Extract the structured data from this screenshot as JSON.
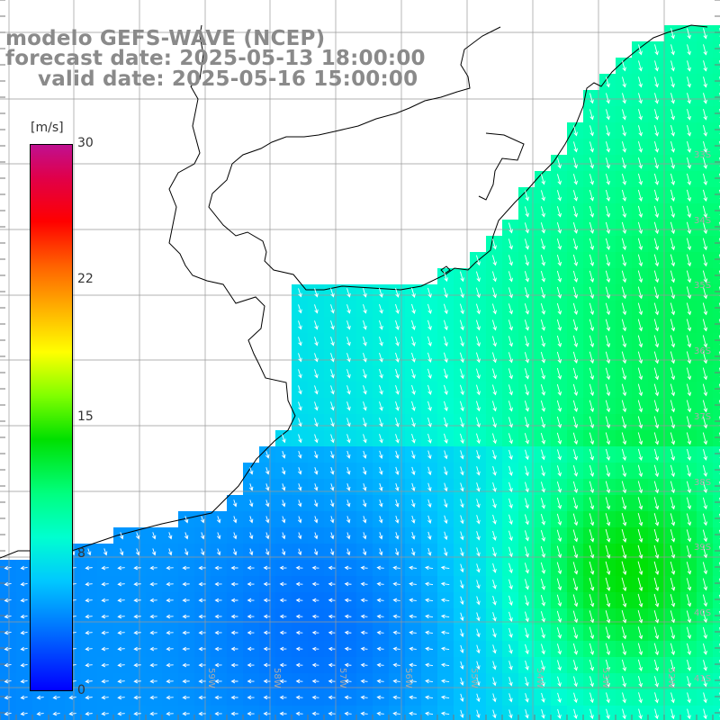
{
  "header": {
    "model_title": "modelo GEFS-WAVE (NCEP)",
    "forecast_date": "forecast date: 2025-05-13 18:00:00",
    "valid_date": "valid date: 2025-05-16 15:00:00"
  },
  "colorbar": {
    "unit": "[m/s]",
    "ticks": [
      "30",
      "22",
      "15",
      "8",
      "0"
    ],
    "min": 0,
    "max": 30
  },
  "lat_labels": [
    "33S",
    "34S",
    "35S",
    "36S",
    "37S",
    "38S",
    "39S",
    "40S",
    "41S"
  ],
  "lon_labels": [
    "59W",
    "58W",
    "57W",
    "56W",
    "55W",
    "54W",
    "53W",
    "52W"
  ],
  "colors": {
    "land": "#ffffff",
    "coast": "#000000",
    "grid": "#999999",
    "arrow": "#ffffff",
    "title": "#8a8a8a"
  }
}
